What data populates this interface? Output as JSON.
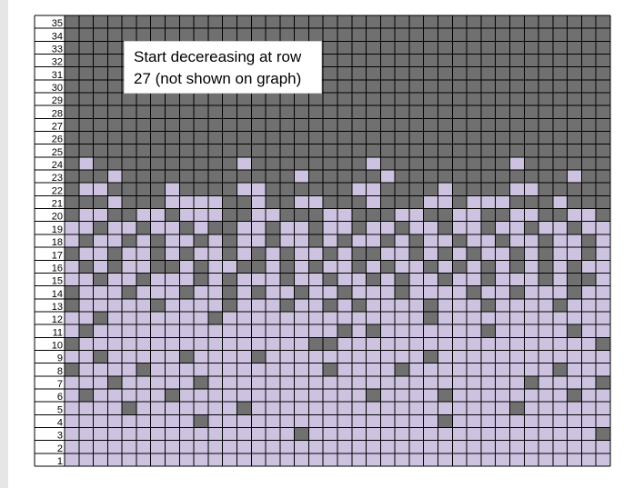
{
  "colors": {
    "dark": "#707070",
    "light": "#cdc3e0",
    "grid": "#000000",
    "label_bg": "#ffffff"
  },
  "note": {
    "line1": "Start decereasing at row",
    "line2": "27 (not shown on graph)"
  },
  "chart_data": {
    "type": "heatmap",
    "rows": 35,
    "cols": 38,
    "row_labels": [
      "35",
      "34",
      "33",
      "32",
      "31",
      "30",
      "29",
      "28",
      "27",
      "26",
      "25",
      "24",
      "23",
      "22",
      "21",
      "20",
      "19",
      "18",
      "17",
      "16",
      "15",
      "14",
      "13",
      "12",
      "11",
      "10",
      "9",
      "8",
      "7",
      "6",
      "5",
      "4",
      "3",
      "2",
      "1"
    ],
    "legend": {
      "D": "dark",
      "L": "light"
    },
    "grid": [
      "DDDDDDDDDDDDDDDDDDDDDDDDDDDDDDDDDDDDDD",
      "DDDDDDDDDDDDDDDDDDDDDDDDDDDDDDDDDDDDDD",
      "DDDDDDDDDDDDDDDDDDDDDDDDDDDDDDDDDDDDDD",
      "DDDDDDDDDDDDDDDDDDDDDDDDDDDDDDDDDDDDDD",
      "DDDDDDDDDDDDDDDDDDDDDDDDDDDDDDDDDDDDDD",
      "DDDDDDDDDDDDDDDDDDDDDDDDDDDDDDDDDDDDDD",
      "DDDDDDDDDDDDDDDDDDDDDDDDDDDDDDDDDDDDDD",
      "DDDDDDDDDDDDDDDDDDDDDDDDDDDDDDDDDDDDDD",
      "DDDDDDDDDDDDDDDDDDDDDDDDDDDDDDDDDDDDDD",
      "DDDDDDDDDDDDDDDDDDDDDDDDDDDDDDDDDDDDDD",
      "DDDDDDDDDDDDDDDDDDDDDDDDDDDDDDDDDDDDDD",
      "DLDDDDDDDDDDLDDDDDDDDLDDDDDDDDDLDDDDDD",
      "DDDLDDDDDDDDDDDDLDDDDDLDDDDDDDDDDDDLDD",
      "DLLDDDDLDDDDLLDDDDDDLLDDDDLDDDDLLDDDDD",
      "DDDLDDDLLLLDDLDDLLDDDLDDDLLDLLLDDDLDDD",
      "DLLDDLLDLLLDDLLDDDLLDDDLLDDLLDDLLDDLLD",
      "LLDLLDLLDLDDLLDLLDLLDLLDLLDLLDLLDLLDLL",
      "LDLLDLDLLDLDLLDLLDLDLLDLDLLDLLDLLDLLDL",
      "DLLDLLDLDLLDLDLDLLDLDDLLDLDLDLLDLDLLDL",
      "LDLDLLDDLDLLDDLDLDLLDLDLLDLDLDLDLDLDLL",
      "LLDLLDLLLDLDLLLDLLDLLDLDLLDLLDLLLDLDDL",
      "DLLLDLLLDLLDLDLLDLLDLLLDLLLLDLLDLLLDLL",
      "DLLLLLDLLLLDLLLDLLDLDLLLLDLLLDLLLLDLLL",
      "LLDLLLLLLLDLLLLLLLLLLLLLLDLLLLLLLLLLLL",
      "LDLLLLLLLLLLLLLLLLLDLDLLLLLLLDLLLLLDLL",
      "DLLLLLLLLLLLLLLLLDDLLLLLLLLLLLLLLLLLLD",
      "LLDLLLLLDLLLLDLLLLLLLLLLLDLLLLLLLLLLLL",
      "DLLLLDLLLLLLLLLLLLDLLLLDLLLLLLLLLLDLLL",
      "LLLDLLLLLDLLLLLLLLLLLLLLLLLLLLLLDLLLLD",
      "LDLLLLLDLLLLLLLLLLLLLDLLLLDLLLLLLLLDLL",
      "LLLLDLLLLLLLDLLLLLLLLLLLLLLLLLLDLLLLLL",
      "LLLLLLLLLDLLLLLLLLLLLLLLLLDLLLLLLLLLLL",
      "LLLLLLLLLLLLLLLLDLLLLLLLLLLLLLLLLLLLLD",
      "LLLLLLLLLLLLLLLLLLLLLLLLLLLLLLLLLLLLLL",
      "LLLLLLLLLLLLLLLLLLLLLLLLLLLLLLLLLLLLLL"
    ]
  }
}
